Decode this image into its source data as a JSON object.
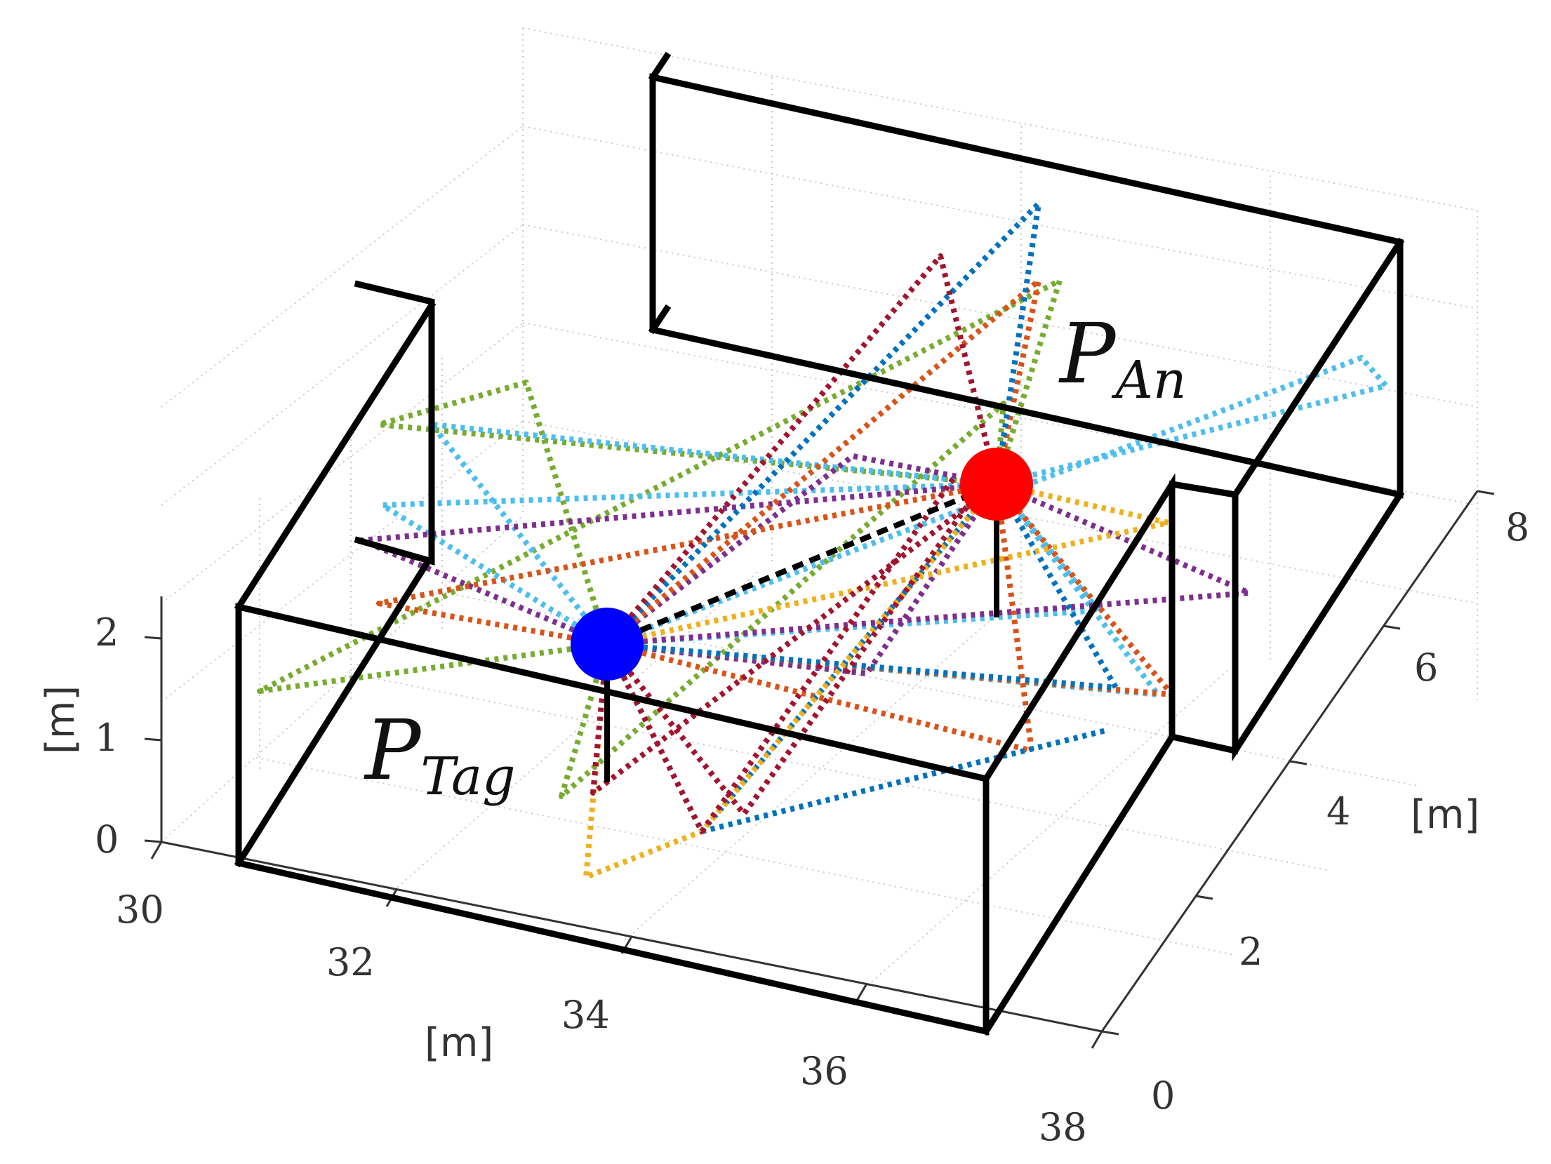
{
  "chart_data": {
    "type": "scatter",
    "subtype": "3d-multipath-rays",
    "title": "",
    "axes": {
      "x": {
        "label": "[m]",
        "range": [
          30,
          38
        ],
        "ticks": [
          "30",
          "32",
          "34",
          "36",
          "38"
        ]
      },
      "y": {
        "label": "[m]",
        "range": [
          0,
          8
        ],
        "ticks": [
          "0",
          "2",
          "4",
          "6",
          "8"
        ]
      },
      "z": {
        "label": "[m]",
        "range": [
          0,
          2.5
        ],
        "ticks": [
          "0",
          "1",
          "2"
        ]
      }
    },
    "grid": "on",
    "points": [
      {
        "name": "P",
        "subscript": "Tag",
        "x": 33.0,
        "y": 4.0,
        "z": 1.6,
        "color": "#0000ff"
      },
      {
        "name": "P",
        "subscript": "An",
        "x": 35.8,
        "y": 7.0,
        "z": 1.6,
        "color": "#ff0000"
      }
    ],
    "line_of_sight": {
      "style": "dashed",
      "color": "#000000"
    },
    "ray_colors": {
      "blue": "#0072bd",
      "orange": "#d95319",
      "yellow": "#edb120",
      "purple": "#7e2f8e",
      "green": "#77ac30",
      "cyan": "#4dbeee",
      "maroon": "#a2142f"
    }
  }
}
